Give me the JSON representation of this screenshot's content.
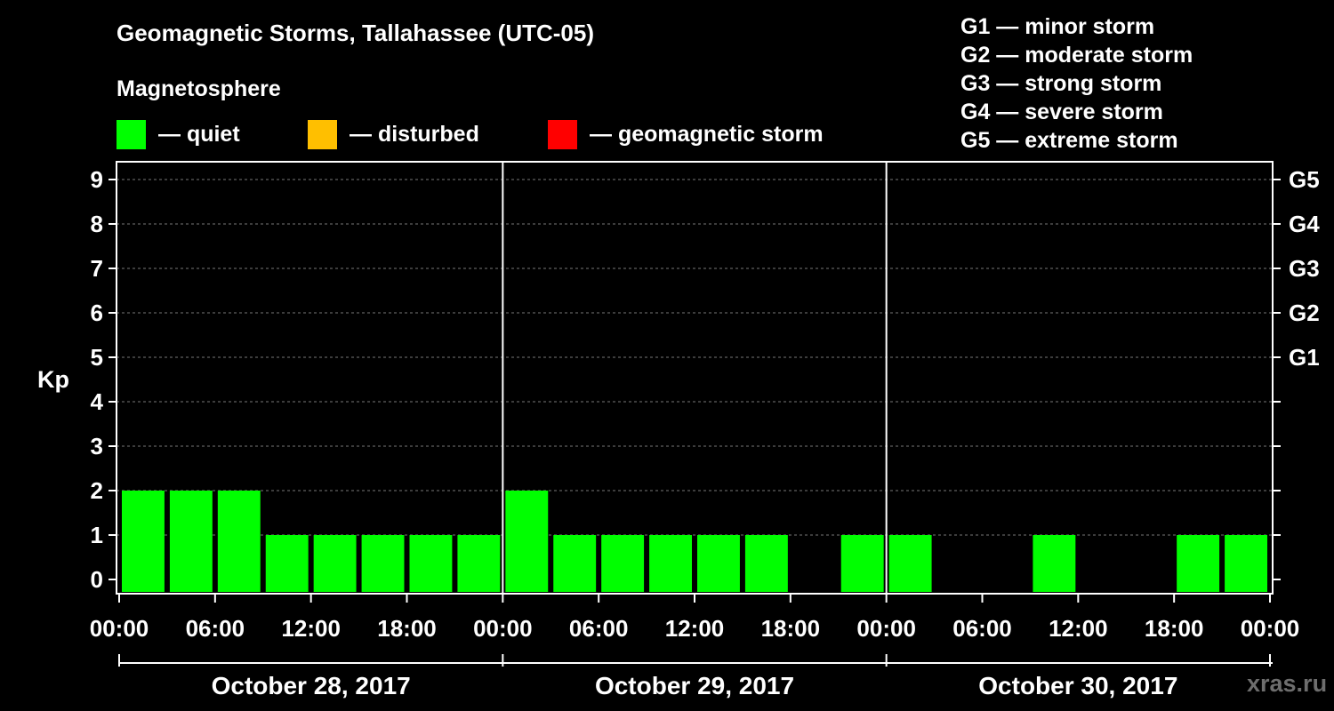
{
  "chart_data": {
    "type": "bar",
    "title": "Geomagnetic Storms, Tallahassee (UTC-05)",
    "subtitle": "Magnetosphere",
    "ylabel": "Kp",
    "ylim": [
      0,
      9
    ],
    "y_ticks": [
      "0",
      "1",
      "2",
      "3",
      "4",
      "5",
      "6",
      "7",
      "8",
      "9"
    ],
    "right_axis": [
      {
        "kp": 5,
        "label": "G1"
      },
      {
        "kp": 6,
        "label": "G2"
      },
      {
        "kp": 7,
        "label": "G3"
      },
      {
        "kp": 8,
        "label": "G4"
      },
      {
        "kp": 9,
        "label": "G5"
      }
    ],
    "x_ticks": [
      "00:00",
      "06:00",
      "12:00",
      "18:00",
      "00:00",
      "06:00",
      "12:00",
      "18:00",
      "00:00",
      "06:00",
      "12:00",
      "18:00",
      "00:00"
    ],
    "x_range_hours": [
      0,
      72
    ],
    "days": [
      "October 28, 2017",
      "October 29, 2017",
      "October 30, 2017"
    ],
    "legend": [
      {
        "label": "— quiet",
        "color": "#00ff00"
      },
      {
        "label": "— disturbed",
        "color": "#ffbf00"
      },
      {
        "label": "— geomagnetic storm",
        "color": "#ff0000"
      }
    ],
    "storm_levels": [
      "G1 — minor storm",
      "G2 — moderate storm",
      "G3 — strong storm",
      "G4 — severe storm",
      "G5 — extreme storm"
    ],
    "bar_color": "#00ff00",
    "grid": "dashed horizontal",
    "series": [
      {
        "x_hours": [
          0,
          3,
          6,
          9,
          12,
          15,
          18,
          21,
          24,
          27,
          30,
          33,
          36,
          39,
          42,
          45,
          48,
          51,
          54,
          57,
          60,
          63,
          66,
          69
        ],
        "values": [
          2,
          2,
          2,
          1,
          1,
          1,
          1,
          1,
          2,
          1,
          1,
          1,
          1,
          1,
          0,
          1,
          1,
          0,
          0,
          1,
          0,
          0,
          1,
          1
        ]
      }
    ]
  },
  "watermark": "xras.ru"
}
